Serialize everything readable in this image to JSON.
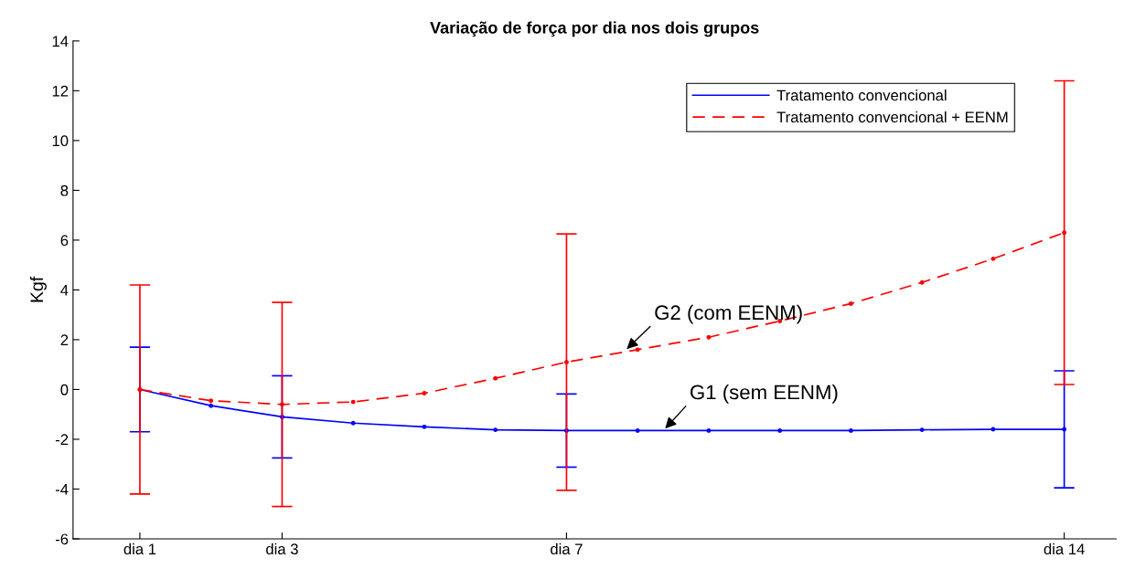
{
  "chart_data": {
    "type": "line",
    "title": "Variação de força por dia nos dois grupos",
    "ylabel": "Kgf",
    "categories": [
      "dia 1",
      null,
      "dia 3",
      null,
      null,
      null,
      "dia 7",
      null,
      null,
      null,
      null,
      null,
      null,
      "dia 14"
    ],
    "series": [
      {
        "name": "Tratamento convencional",
        "color": "#0000ff",
        "values": [
          0,
          -0.65,
          -1.1,
          -1.35,
          -1.5,
          -1.62,
          -1.65,
          -1.65,
          -1.65,
          -1.65,
          -1.65,
          -1.62,
          -1.6,
          -1.6
        ],
        "errors": [
          1.7,
          null,
          1.65,
          null,
          null,
          null,
          1.47,
          null,
          null,
          null,
          null,
          null,
          null,
          2.35
        ],
        "line_style": "solid"
      },
      {
        "name": "Tratamento convencional + EENM",
        "color": "#ff0000",
        "values": [
          0,
          -0.45,
          -0.6,
          -0.5,
          -0.15,
          0.45,
          1.1,
          1.6,
          2.1,
          2.75,
          3.45,
          4.3,
          5.25,
          6.3
        ],
        "errors": [
          4.2,
          null,
          4.1,
          null,
          null,
          null,
          5.15,
          null,
          null,
          null,
          null,
          null,
          null,
          6.1
        ],
        "line_style": "dashed"
      }
    ],
    "ylim": [
      -6,
      14
    ],
    "yticks": [
      -6,
      -4,
      -2,
      0,
      2,
      4,
      6,
      8,
      10,
      12,
      14
    ],
    "annotations": [
      "G2 (com EENM)",
      "G1 (sem EENM)"
    ],
    "legend": "top right",
    "grid": false,
    "marker": "circle"
  }
}
